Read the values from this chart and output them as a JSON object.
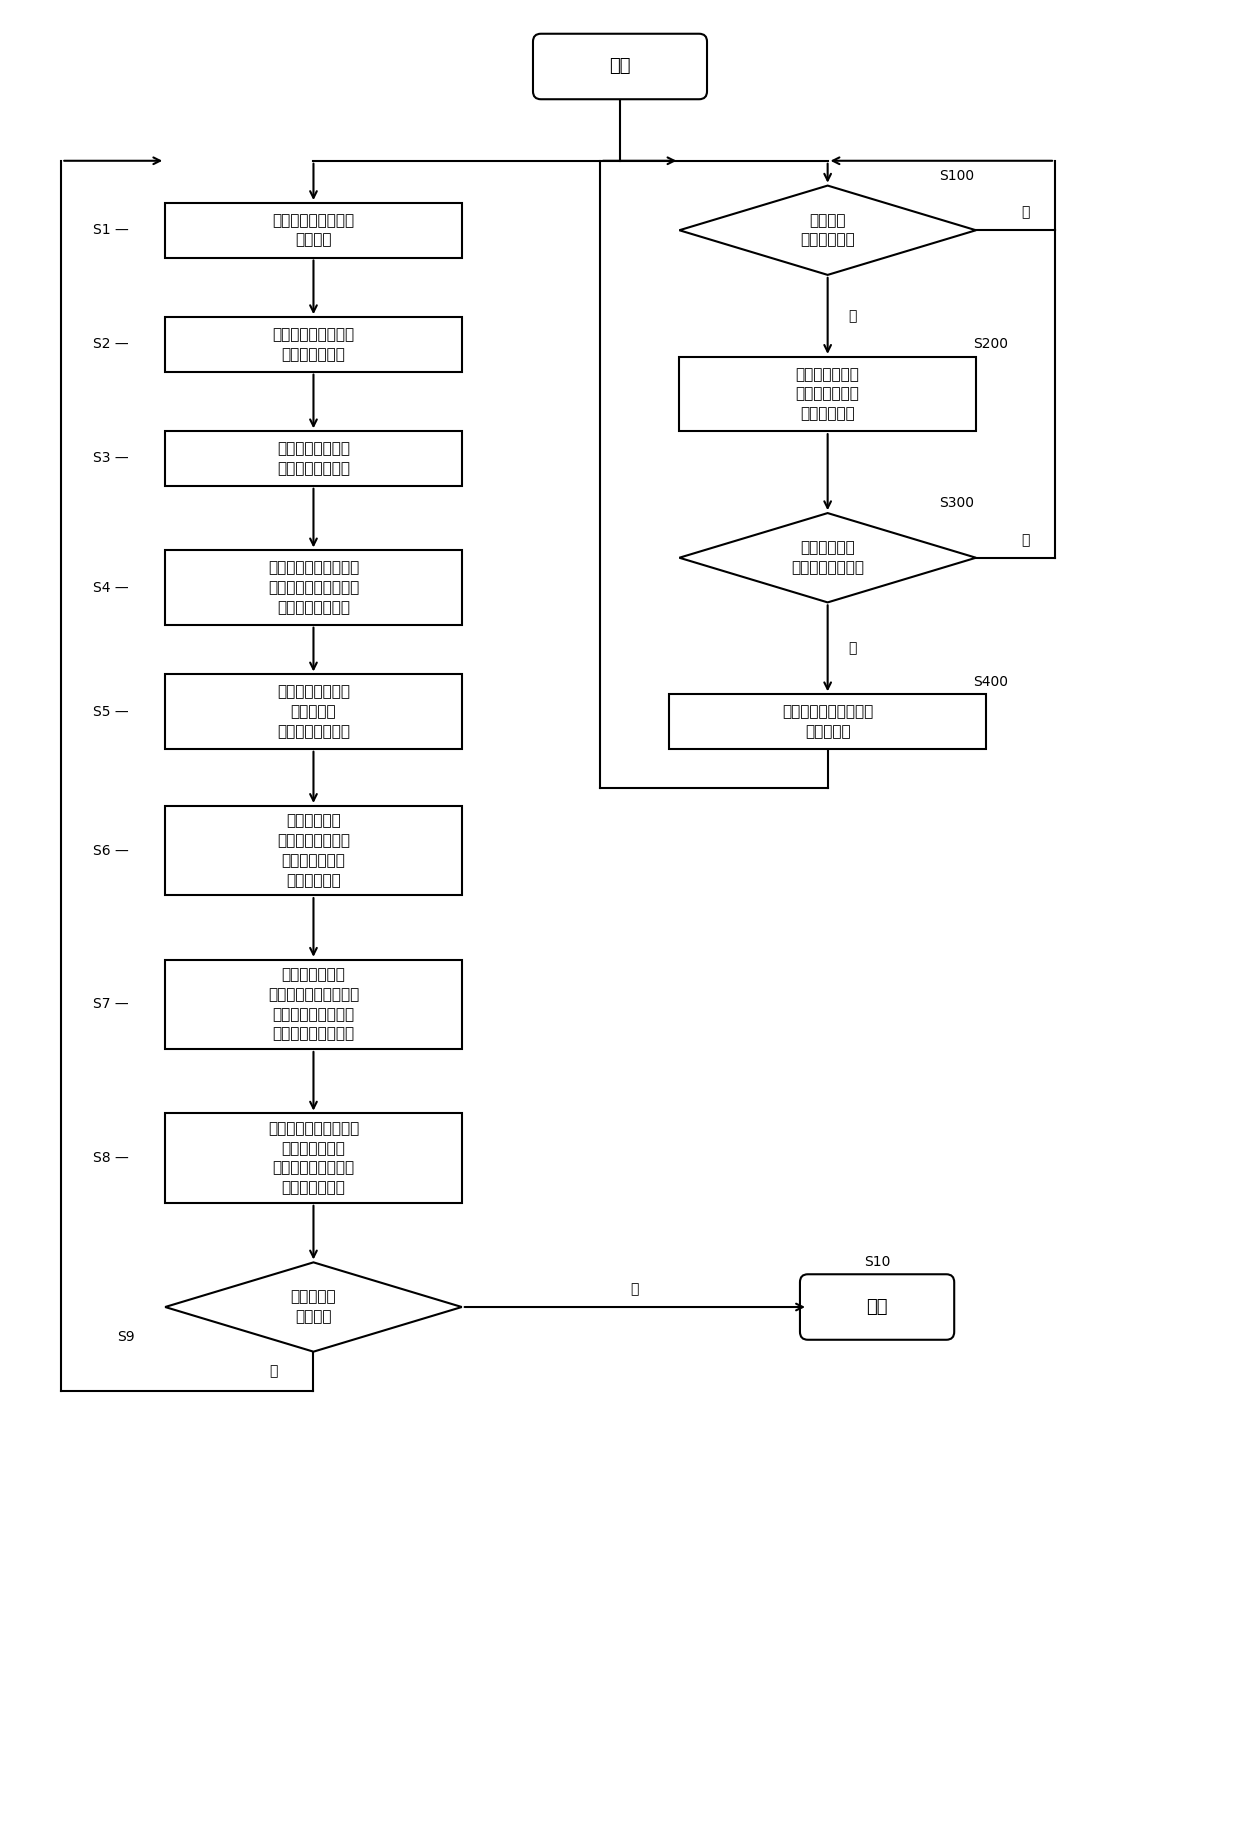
{
  "bg_color": "#ffffff",
  "start_text": "开始",
  "end_text": "结束",
  "s1_text": "调整天线波束方向角\n开始扫描",
  "s2_text": "记录扫描到的标签号\n和扫描反馈次数",
  "s3_text": "过滤多径效应信号\n（反馈次数太少）",
  "s4_text": "读取有效标签生产日期\n未超期则重写生产日期\n超期则标记不合格",
  "s5_text": "计算有效标签信号\n的中心坐标\n并加入未确定队列",
  "s6_text": "根据扫描时间\n计算当前时间瓶口\n的相对位置坐标\n加入参考队列",
  "s7_text": "计算合理误差后\n比对未确定和参考队列\n将合理吻合的标签号\n绑定物理钢瓶次序号",
  "s8_text": "已绑定标签的位置记录\n和瓶口位置坐标\n分别从未确定队列和\n参考队列中移除",
  "s9_text": "未确定队列\n是否已空",
  "s100_text": "是否触发\n校准红外栅栏",
  "s200_text": "查看参考队列中\n入列时间最早的\n瓶口相对位置",
  "s300_text": "计算位置是否\n离开天线读写范围",
  "s400_text": "将此钢瓶次序号标记为\n不明身份瓶",
  "yes": "是",
  "no": "否"
}
